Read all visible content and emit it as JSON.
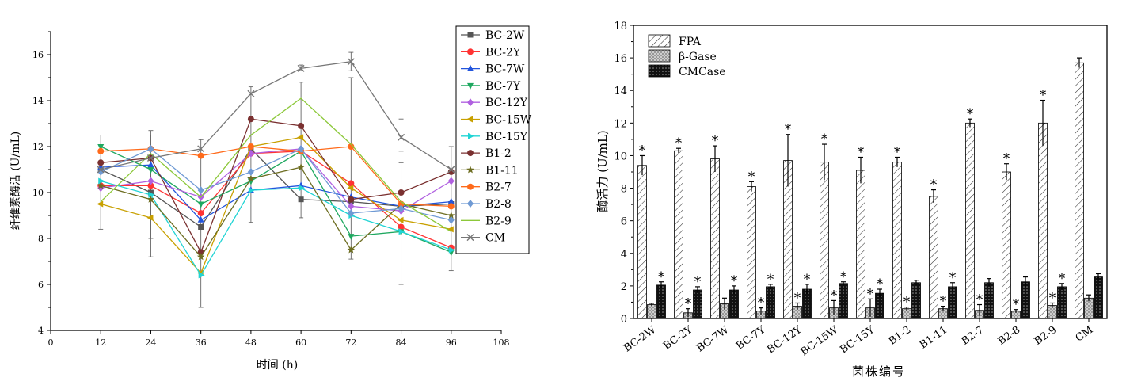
{
  "chart_data": [
    {
      "type": "line",
      "xlabel": "时间 (h)",
      "ylabel": "纤维素酶活 (U/mL)",
      "xlim": [
        0,
        108
      ],
      "ylim": [
        4,
        17
      ],
      "xticks": [
        0,
        12,
        24,
        36,
        48,
        60,
        72,
        84,
        96,
        108
      ],
      "yticks": [
        4,
        6,
        8,
        10,
        12,
        14,
        16
      ],
      "x": [
        12,
        24,
        36,
        48,
        60,
        72,
        84,
        96
      ],
      "legend_position": "top-right",
      "series": [
        {
          "name": "BC-2W",
          "color": "#555555",
          "marker": "square",
          "values": [
            11.0,
            10.0,
            8.5,
            11.9,
            9.7,
            9.6,
            9.4,
            9.5
          ]
        },
        {
          "name": "BC-2Y",
          "color": "#ff3333",
          "marker": "circle",
          "values": [
            10.3,
            10.3,
            9.1,
            11.7,
            11.8,
            10.4,
            8.5,
            7.6
          ]
        },
        {
          "name": "BC-7W",
          "color": "#2255dd",
          "marker": "triangle-up",
          "values": [
            11.1,
            11.2,
            8.8,
            10.1,
            10.3,
            9.8,
            9.4,
            9.6
          ]
        },
        {
          "name": "BC-7Y",
          "color": "#1fa860",
          "marker": "triangle-down",
          "values": [
            12.0,
            11.0,
            9.5,
            10.5,
            11.8,
            8.1,
            8.3,
            7.4
          ]
        },
        {
          "name": "BC-12Y",
          "color": "#b060e0",
          "marker": "diamond",
          "values": [
            10.2,
            10.5,
            9.8,
            11.7,
            11.9,
            9.4,
            9.2,
            10.5
          ]
        },
        {
          "name": "BC-15W",
          "color": "#c8a000",
          "marker": "triangle-left",
          "values": [
            9.5,
            8.9,
            6.5,
            12.0,
            12.4,
            10.2,
            8.8,
            8.4
          ]
        },
        {
          "name": "BC-15Y",
          "color": "#20d4d4",
          "marker": "triangle-right",
          "values": [
            10.5,
            9.9,
            6.4,
            10.1,
            10.2,
            9.0,
            8.3,
            7.5
          ]
        },
        {
          "name": "B1-2",
          "color": "#7a3030",
          "marker": "circle",
          "values": [
            11.3,
            11.5,
            7.4,
            13.2,
            12.9,
            9.7,
            10.0,
            10.9
          ]
        },
        {
          "name": "B1-11",
          "color": "#6e6e22",
          "marker": "star",
          "values": [
            10.3,
            9.7,
            7.2,
            10.6,
            11.1,
            7.5,
            9.5,
            9.0
          ]
        },
        {
          "name": "B2-7",
          "color": "#ff6a1a",
          "marker": "circle",
          "values": [
            11.8,
            11.9,
            11.6,
            12.0,
            11.8,
            12.0,
            9.5,
            9.4
          ]
        },
        {
          "name": "B2-8",
          "color": "#6f9ad4",
          "marker": "diamond",
          "values": [
            10.9,
            11.9,
            10.1,
            10.9,
            11.9,
            9.1,
            9.3,
            8.8
          ]
        },
        {
          "name": "B2-9",
          "color": "#8cc83a",
          "marker": "none",
          "values": [
            9.6,
            11.7,
            9.8,
            12.5,
            14.1,
            12.1,
            9.6,
            8.3
          ]
        },
        {
          "name": "CM",
          "color": "#777777",
          "marker": "x",
          "values": [
            11.0,
            11.5,
            11.9,
            14.3,
            15.4,
            15.7,
            12.4,
            11.0
          ]
        }
      ],
      "error_bars": [
        {
          "x": 12,
          "y": 11.0,
          "low": 8.4,
          "high": 12.5
        },
        {
          "x": 24,
          "y": 10.3,
          "low": 7.2,
          "high": 12.7
        },
        {
          "x": 24,
          "y": 9.7,
          "low": 8.0,
          "high": 12.5
        },
        {
          "x": 36,
          "y": 8.0,
          "low": 5.0,
          "high": 12.3
        },
        {
          "x": 48,
          "y": 12.2,
          "low": 8.7,
          "high": 14.6
        },
        {
          "x": 60,
          "y": 11.0,
          "low": 8.9,
          "high": 14.8
        },
        {
          "x": 60,
          "y": 15.4,
          "low": 15.3,
          "high": 15.55
        },
        {
          "x": 72,
          "y": 11.0,
          "low": 7.1,
          "high": 15.0
        },
        {
          "x": 72,
          "y": 15.7,
          "low": 15.3,
          "high": 16.1
        },
        {
          "x": 84,
          "y": 10.0,
          "low": 6.0,
          "high": 11.3
        },
        {
          "x": 84,
          "y": 12.4,
          "low": 11.8,
          "high": 13.2
        },
        {
          "x": 96,
          "y": 9.5,
          "low": 6.6,
          "high": 12.0
        }
      ]
    },
    {
      "type": "bar",
      "xlabel": "菌株编号",
      "ylabel": "酶活力 (U/mL)",
      "ylim": [
        0,
        18
      ],
      "yticks": [
        0,
        2,
        4,
        6,
        8,
        10,
        12,
        14,
        16,
        18
      ],
      "legend_position": "top-left",
      "categories": [
        "BC-2W",
        "BC-2Y",
        "BC-7W",
        "BC-7Y",
        "BC-12Y",
        "BC-15W",
        "BC-15Y",
        "B1-2",
        "B1-11",
        "B2-7",
        "B2-8",
        "B2-9",
        "CM"
      ],
      "series": [
        {
          "name": "FPA",
          "pattern": "diagonal-hatch",
          "values": [
            9.4,
            10.3,
            9.8,
            8.1,
            9.7,
            9.6,
            9.1,
            9.6,
            7.5,
            12.0,
            9.0,
            12.0,
            15.7
          ],
          "errors": [
            0.6,
            0.15,
            0.8,
            0.3,
            1.6,
            1.1,
            0.8,
            0.3,
            0.4,
            0.25,
            0.5,
            1.4,
            0.3
          ],
          "significant": [
            true,
            true,
            true,
            true,
            true,
            true,
            true,
            true,
            true,
            true,
            true,
            true,
            false
          ]
        },
        {
          "name": "β-Gase",
          "pattern": "crosshatch-gray",
          "values": [
            0.85,
            0.35,
            0.9,
            0.45,
            0.75,
            0.65,
            0.65,
            0.6,
            0.6,
            0.5,
            0.45,
            0.8,
            1.25
          ],
          "errors": [
            0.08,
            0.25,
            0.35,
            0.2,
            0.2,
            0.45,
            0.55,
            0.1,
            0.15,
            0.35,
            0.1,
            0.15,
            0.2
          ],
          "significant": [
            false,
            true,
            false,
            true,
            true,
            true,
            true,
            true,
            true,
            true,
            true,
            true,
            false
          ]
        },
        {
          "name": "CMCase",
          "pattern": "dense-dark",
          "values": [
            2.05,
            1.75,
            1.75,
            1.95,
            1.8,
            2.15,
            1.55,
            2.2,
            1.95,
            2.2,
            2.25,
            1.95,
            2.55
          ],
          "errors": [
            0.2,
            0.2,
            0.25,
            0.15,
            0.3,
            0.1,
            0.25,
            0.15,
            0.25,
            0.25,
            0.3,
            0.2,
            0.2
          ],
          "significant": [
            true,
            true,
            true,
            true,
            true,
            true,
            true,
            false,
            true,
            false,
            false,
            true,
            false
          ]
        }
      ],
      "significance_marker": "*"
    }
  ]
}
